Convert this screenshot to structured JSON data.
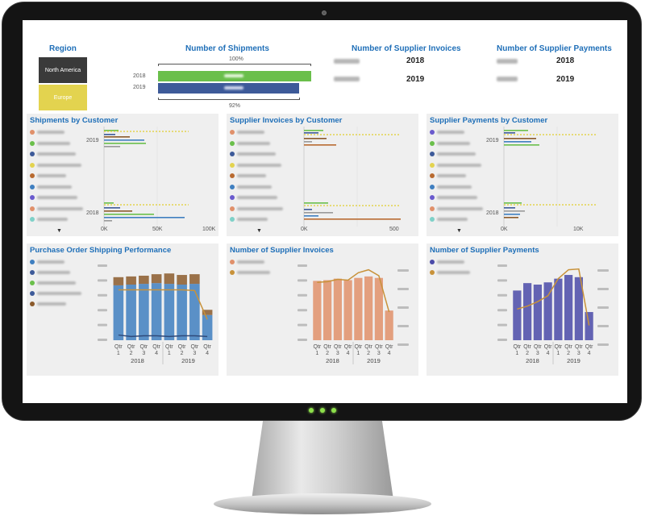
{
  "colors": {
    "accent": "#1f6fb8",
    "north_america": "#3a3a3a",
    "europe": "#e3d34f",
    "green": "#6abf4b",
    "navy": "#3d5a99",
    "blue_bar": "#3f7fc0",
    "brown_bar": "#8b5a2b",
    "salmon_bar": "#e0906a",
    "purple_bar": "#4a4aa8",
    "line_gold": "#c8923a",
    "screen_bg": "#ffffff",
    "panel_bg": "#efefef"
  },
  "region": {
    "title": "Region",
    "options": [
      "North America",
      "Europe"
    ]
  },
  "shipments_kpi": {
    "title": "Number of Shipments",
    "top_pct": "100%",
    "bottom_pct": "92%",
    "years": [
      "2018",
      "2019"
    ],
    "bar_fraction": [
      1.0,
      0.92
    ]
  },
  "supplier_invoices_kpi": {
    "title": "Number of Supplier Invoices",
    "years": [
      "2018",
      "2019"
    ]
  },
  "supplier_payments_kpi": {
    "title": "Number of Supplier Payments",
    "years": [
      "2018",
      "2019"
    ]
  },
  "shipments_by_customer": {
    "title": "Shipments by Customer",
    "years": [
      "2019",
      "2018"
    ],
    "ticks": [
      "0K",
      "50K",
      "100K"
    ],
    "legend_colors": [
      "#e0906a",
      "#6abf4b",
      "#3d5a99",
      "#e3d34f",
      "#b86a30",
      "#3f7fc0",
      "#6a5acd",
      "#e0906a",
      "#7fd1c8"
    ]
  },
  "invoices_by_customer": {
    "title": "Supplier Invoices by Customer",
    "ticks": [
      "0K",
      "500"
    ],
    "legend_colors": [
      "#e0906a",
      "#6abf4b",
      "#3d5a99",
      "#e3d34f",
      "#b86a30",
      "#3f7fc0",
      "#6a5acd",
      "#e0906a",
      "#7fd1c8"
    ]
  },
  "payments_by_customer": {
    "title": "Supplier Payments by Customer",
    "years": [
      "2019",
      "2018"
    ],
    "ticks": [
      "0K",
      "10K"
    ],
    "legend_colors": [
      "#6a5acd",
      "#6abf4b",
      "#3d5a99",
      "#e3d34f",
      "#b86a30",
      "#3f7fc0",
      "#6a5acd",
      "#e0906a",
      "#7fd1c8"
    ]
  },
  "po_shipping": {
    "title": "Purchase Order Shipping Performance",
    "legend_colors": [
      "#3f7fc0",
      "#3d5a99",
      "#6abf4b",
      "#3d5a99",
      "#8b5a2b"
    ]
  },
  "supplier_invoices_chart": {
    "title": "Number of Supplier Invoices",
    "legend_colors": [
      "#e0906a",
      "#c8923a"
    ]
  },
  "supplier_payments_chart": {
    "title": "Number of Supplier Payments",
    "legend_colors": [
      "#4a4aa8",
      "#c8923a"
    ]
  },
  "quarter_axis": {
    "qtr": "Qtr",
    "quarters": [
      "1",
      "2",
      "3",
      "4",
      "1",
      "2",
      "3",
      "4"
    ],
    "years": [
      "2018",
      "2019"
    ]
  },
  "chart_data": [
    {
      "type": "bar",
      "title": "Purchase Order Shipping Performance",
      "categories": [
        "Qtr 1 2018",
        "Qtr 2 2018",
        "Qtr 3 2018",
        "Qtr 4 2018",
        "Qtr 1 2019",
        "Qtr 2 2019",
        "Qtr 3 2019",
        "Qtr 4 2019"
      ],
      "series": [
        {
          "name": "",
          "color": "#3f7fc0",
          "values": [
            0.74,
            0.75,
            0.76,
            0.77,
            0.76,
            0.75,
            0.76,
            0.34
          ]
        },
        {
          "name": "",
          "color": "#8b5a2b",
          "values": [
            0.11,
            0.11,
            0.11,
            0.12,
            0.14,
            0.13,
            0.13,
            0.07
          ]
        }
      ],
      "line": [
        0.68,
        0.68,
        0.68,
        0.68,
        0.68,
        0.68,
        0.67,
        0.28
      ],
      "line2": [
        0.07,
        0.05,
        0.06,
        0.06,
        0.05,
        0.06,
        0.06,
        0.05
      ]
    },
    {
      "type": "bar",
      "title": "Number of Supplier Invoices",
      "categories": [
        "Qtr 1 2018",
        "Qtr 2 2018",
        "Qtr 3 2018",
        "Qtr 4 2018",
        "Qtr 1 2019",
        "Qtr 2 2019",
        "Qtr 3 2019",
        "Qtr 4 2019"
      ],
      "series": [
        {
          "name": "",
          "color": "#e0906a",
          "values": [
            0.8,
            0.81,
            0.83,
            0.81,
            0.84,
            0.86,
            0.84,
            0.4
          ]
        }
      ],
      "line": [
        0.78,
        0.79,
        0.82,
        0.81,
        0.91,
        0.95,
        0.87,
        0.38
      ]
    },
    {
      "type": "bar",
      "title": "Number of Supplier Payments",
      "categories": [
        "Qtr 1 2018",
        "Qtr 2 2018",
        "Qtr 3 2018",
        "Qtr 4 2018",
        "Qtr 1 2019",
        "Qtr 2 2019",
        "Qtr 3 2019",
        "Qtr 4 2019"
      ],
      "series": [
        {
          "name": "",
          "color": "#4a4aa8",
          "values": [
            0.67,
            0.77,
            0.75,
            0.78,
            0.83,
            0.88,
            0.85,
            0.38
          ]
        }
      ],
      "line": [
        0.42,
        0.46,
        0.52,
        0.6,
        0.83,
        0.95,
        0.96,
        0.2
      ]
    }
  ]
}
